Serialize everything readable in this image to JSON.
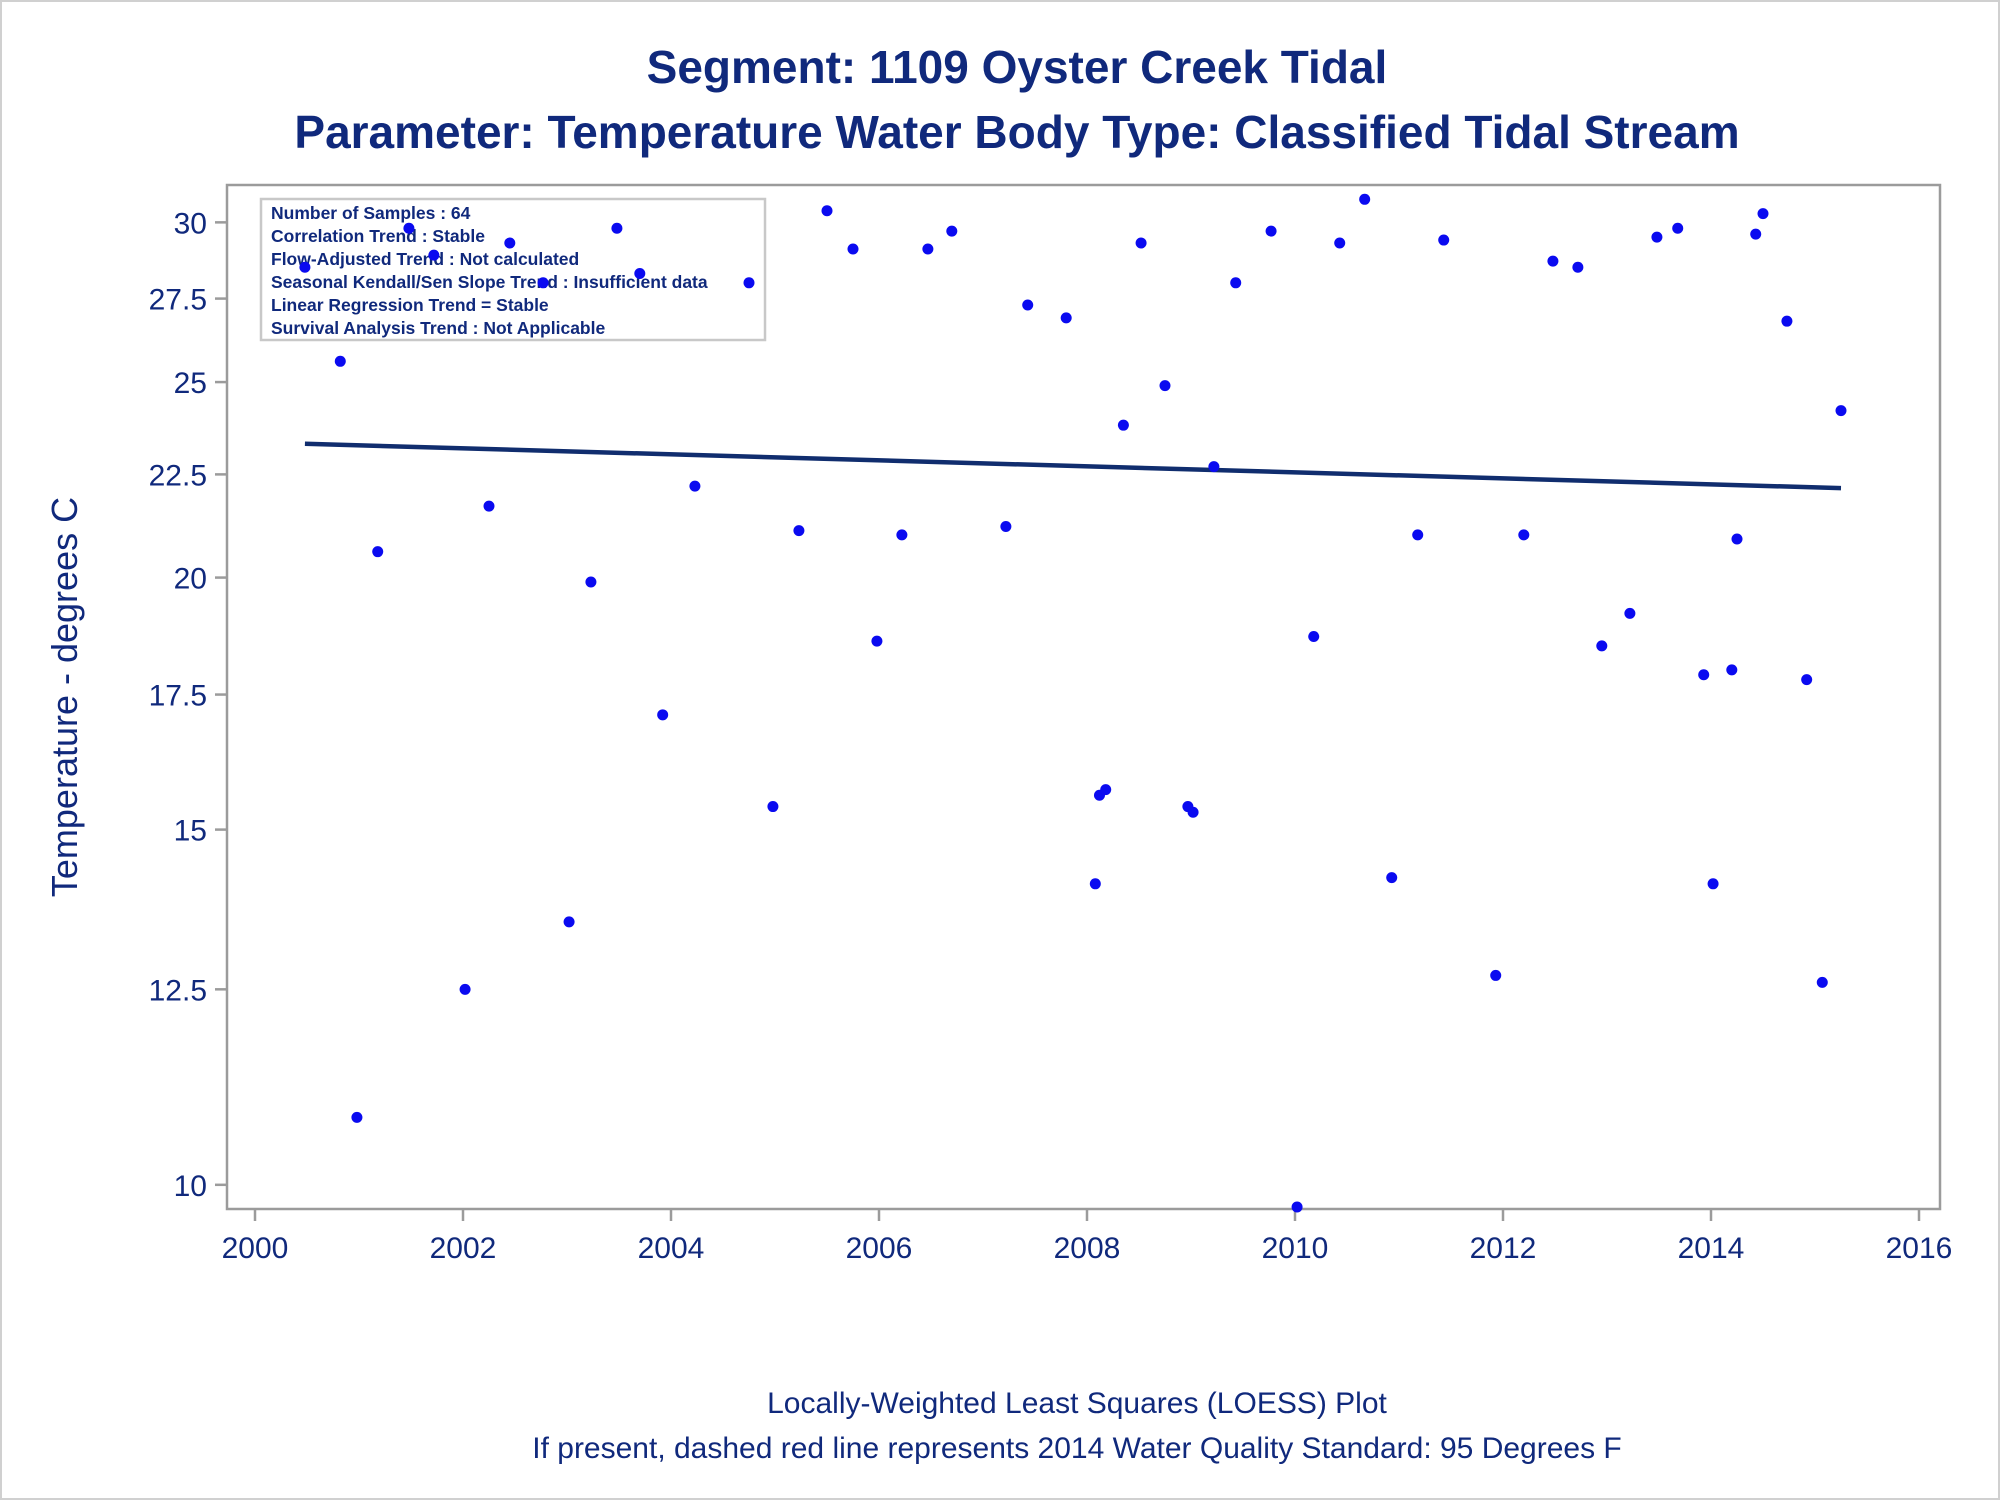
{
  "title": "Segment: 1109  Oyster Creek Tidal",
  "subtitle": "Parameter: Temperature   Water Body Type: Classified Tidal Stream",
  "footnotes": [
    "Locally-Weighted Least Squares (LOESS) Plot",
    "If present, dashed red line represents 2014 Water Quality Standard: 95   Degrees F"
  ],
  "inset": [
    "Number of Samples : 64",
    "Correlation Trend : Stable",
    "Flow-Adjusted Trend : Not calculated",
    "Seasonal Kendall/Sen Slope Trend : Insufficient data",
    "Linear Regression Trend = Stable",
    "Survival Analysis Trend : Not Applicable"
  ],
  "colors": {
    "text": "#10297c",
    "points": "#0a0af0",
    "line": "#102d6e",
    "frame": "#9b9b9b"
  },
  "chart_data": {
    "type": "scatter",
    "ylabel": "Temperature - degrees C",
    "xlabel": "",
    "y_scale": "log",
    "xlim": [
      2000,
      2016
    ],
    "ylim": [
      9.75,
      31.2
    ],
    "xticks": [
      "2000",
      "2002",
      "2004",
      "2006",
      "2008",
      "2010",
      "2012",
      "2014",
      "2016"
    ],
    "xtick_values": [
      2000,
      2002,
      2004,
      2006,
      2008,
      2010,
      2012,
      2014,
      2016
    ],
    "yticks": [
      "10",
      "12.5",
      "15",
      "17.5",
      "20",
      "22.5",
      "25",
      "27.5",
      "30"
    ],
    "ytick_values": [
      10,
      12.5,
      15,
      17.5,
      20,
      22.5,
      25,
      27.5,
      30
    ],
    "grid": false,
    "points": [
      {
        "x": 2000.48,
        "y": 28.5
      },
      {
        "x": 2000.82,
        "y": 25.6
      },
      {
        "x": 2000.98,
        "y": 10.8
      },
      {
        "x": 2001.18,
        "y": 20.6
      },
      {
        "x": 2001.48,
        "y": 29.8
      },
      {
        "x": 2001.72,
        "y": 28.9
      },
      {
        "x": 2002.02,
        "y": 12.5
      },
      {
        "x": 2002.25,
        "y": 21.7
      },
      {
        "x": 2002.45,
        "y": 29.3
      },
      {
        "x": 2002.77,
        "y": 28.0
      },
      {
        "x": 2003.02,
        "y": 13.5
      },
      {
        "x": 2003.23,
        "y": 19.9
      },
      {
        "x": 2003.48,
        "y": 29.8
      },
      {
        "x": 2003.7,
        "y": 28.3
      },
      {
        "x": 2003.92,
        "y": 17.1
      },
      {
        "x": 2004.23,
        "y": 22.2
      },
      {
        "x": 2004.75,
        "y": 28.0
      },
      {
        "x": 2004.98,
        "y": 15.4
      },
      {
        "x": 2005.23,
        "y": 21.1
      },
      {
        "x": 2005.5,
        "y": 30.4
      },
      {
        "x": 2005.75,
        "y": 29.1
      },
      {
        "x": 2005.98,
        "y": 18.6
      },
      {
        "x": 2006.22,
        "y": 21.0
      },
      {
        "x": 2006.47,
        "y": 29.1
      },
      {
        "x": 2006.7,
        "y": 29.7
      },
      {
        "x": 2007.22,
        "y": 21.2
      },
      {
        "x": 2007.43,
        "y": 27.3
      },
      {
        "x": 2007.8,
        "y": 26.9
      },
      {
        "x": 2008.08,
        "y": 14.1
      },
      {
        "x": 2008.12,
        "y": 15.6
      },
      {
        "x": 2008.18,
        "y": 15.7
      },
      {
        "x": 2008.35,
        "y": 23.8
      },
      {
        "x": 2008.52,
        "y": 29.3
      },
      {
        "x": 2008.75,
        "y": 24.9
      },
      {
        "x": 2008.97,
        "y": 15.4
      },
      {
        "x": 2009.02,
        "y": 15.3
      },
      {
        "x": 2009.22,
        "y": 22.7
      },
      {
        "x": 2009.43,
        "y": 28.0
      },
      {
        "x": 2009.77,
        "y": 29.7
      },
      {
        "x": 2010.02,
        "y": 9.75
      },
      {
        "x": 2010.18,
        "y": 18.7
      },
      {
        "x": 2010.43,
        "y": 29.3
      },
      {
        "x": 2010.67,
        "y": 30.8
      },
      {
        "x": 2010.93,
        "y": 14.2
      },
      {
        "x": 2011.18,
        "y": 21.0
      },
      {
        "x": 2011.43,
        "y": 29.4
      },
      {
        "x": 2011.93,
        "y": 12.7
      },
      {
        "x": 2012.2,
        "y": 21.0
      },
      {
        "x": 2012.48,
        "y": 28.7
      },
      {
        "x": 2012.72,
        "y": 28.5
      },
      {
        "x": 2012.95,
        "y": 18.5
      },
      {
        "x": 2013.22,
        "y": 19.2
      },
      {
        "x": 2013.48,
        "y": 29.5
      },
      {
        "x": 2013.68,
        "y": 29.8
      },
      {
        "x": 2013.93,
        "y": 17.9
      },
      {
        "x": 2014.02,
        "y": 14.1
      },
      {
        "x": 2014.2,
        "y": 18.0
      },
      {
        "x": 2014.25,
        "y": 20.9
      },
      {
        "x": 2014.43,
        "y": 29.6
      },
      {
        "x": 2014.5,
        "y": 30.3
      },
      {
        "x": 2014.73,
        "y": 26.8
      },
      {
        "x": 2014.92,
        "y": 17.8
      },
      {
        "x": 2015.07,
        "y": 12.6
      },
      {
        "x": 2015.25,
        "y": 24.2
      }
    ],
    "trend_line": {
      "x": [
        2000.48,
        2015.25
      ],
      "y": [
        23.3,
        22.15
      ]
    }
  }
}
